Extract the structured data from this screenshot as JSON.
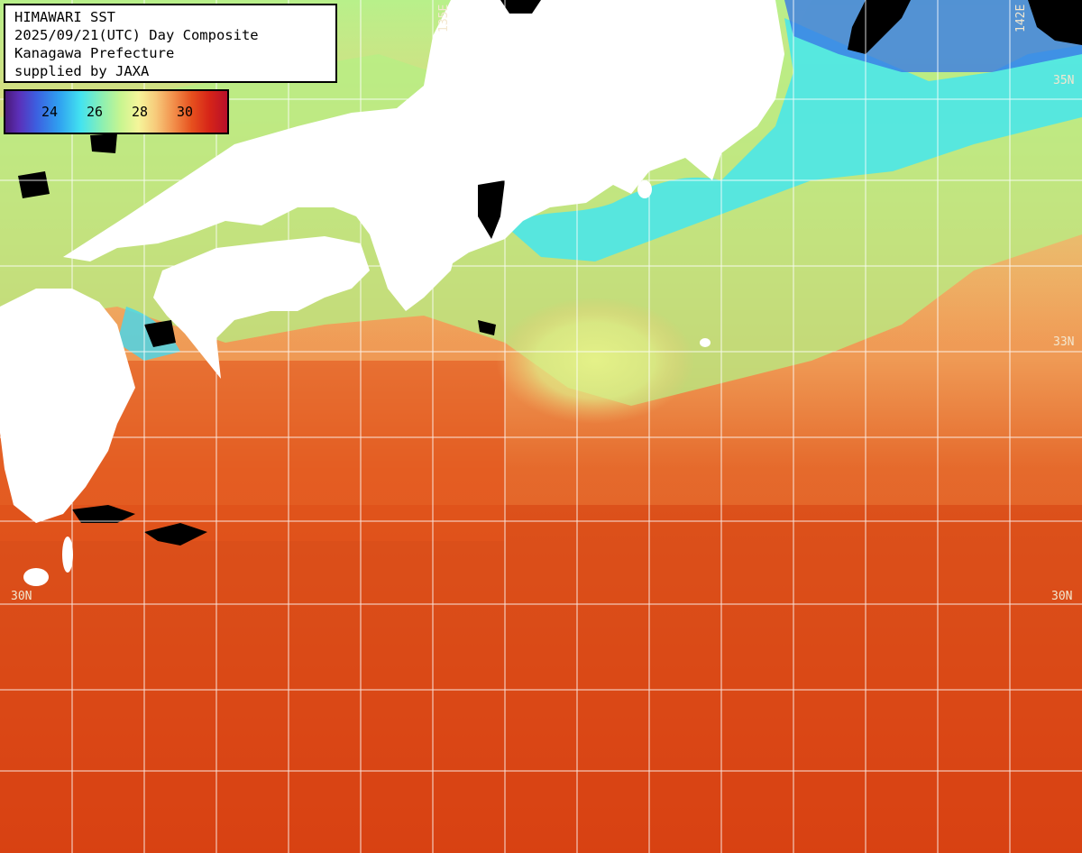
{
  "title": {
    "line1": "HIMAWARI SST",
    "line2": "2025/09/21(UTC) Day Composite",
    "line3": "Kanagawa Prefecture",
    "line4": "supplied by JAXA"
  },
  "legend": {
    "ticks": [
      "24",
      "26",
      "28",
      "30"
    ]
  },
  "grid_labels": {
    "lat_35": "35N",
    "lat_33": "33N",
    "lat_30_left": "30N",
    "lat_30_right": "30N",
    "lon_135": "135E",
    "lon_142": "142E"
  },
  "colors": {
    "land": "#ffffff",
    "no_data": "#000000",
    "grid": "#ffffff",
    "warm_sea": "#e0501a",
    "mid_sea": "#f2c060",
    "cool_sea": "#a8ec7c",
    "cold_sea": "#40e8f0"
  }
}
